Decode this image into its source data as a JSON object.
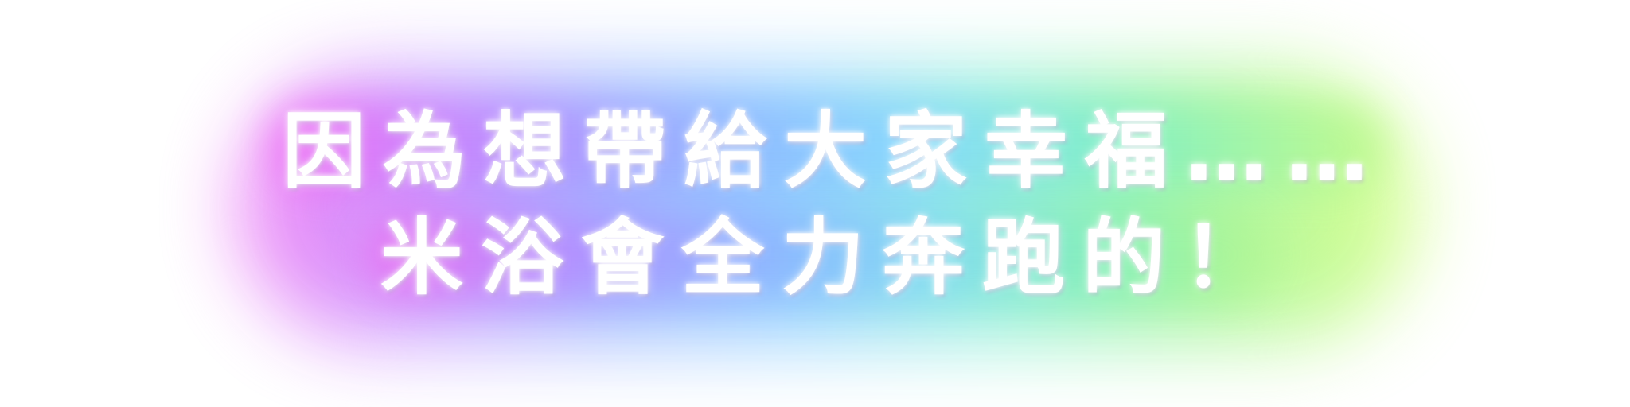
{
  "caption": {
    "line1": "因為想帶給大家幸福……",
    "line2": "米浴會全力奔跑的！"
  }
}
